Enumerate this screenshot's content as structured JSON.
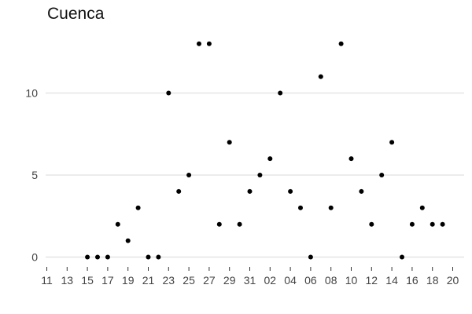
{
  "chart_data": {
    "type": "scatter",
    "title": "Cuenca",
    "xlabel": "",
    "ylabel": "",
    "grid": "horizontal",
    "legend": "none",
    "point_color": "#000000",
    "grid_color": "#e6e6e6",
    "x_tick_labels": [
      "11",
      "13",
      "15",
      "17",
      "19",
      "21",
      "23",
      "25",
      "27",
      "29",
      "31",
      "02",
      "04",
      "06",
      "08",
      "10",
      "12",
      "14",
      "16",
      "18",
      "20"
    ],
    "y_ticks": [
      0,
      5,
      10
    ],
    "ylim": [
      -0.6,
      13.5
    ],
    "x": [
      "15",
      "16",
      "17",
      "19",
      "20",
      "21",
      "22",
      "23",
      "24",
      "25",
      "26",
      "27",
      "28",
      "29",
      "30",
      "31",
      "01",
      "02",
      "03",
      "04",
      "05",
      "06",
      "07",
      "08",
      "09",
      "10",
      "11",
      "12",
      "13",
      "14",
      "15",
      "16",
      "17",
      "18",
      "19",
      "20"
    ],
    "values": [
      0,
      0,
      0,
      2,
      1,
      3,
      0,
      0,
      10,
      4,
      5,
      13,
      13,
      2,
      7,
      2,
      4,
      5,
      6,
      10,
      4,
      3,
      0,
      11,
      3,
      13,
      6,
      4,
      2,
      5,
      7,
      0,
      2,
      3,
      2,
      2
    ]
  }
}
